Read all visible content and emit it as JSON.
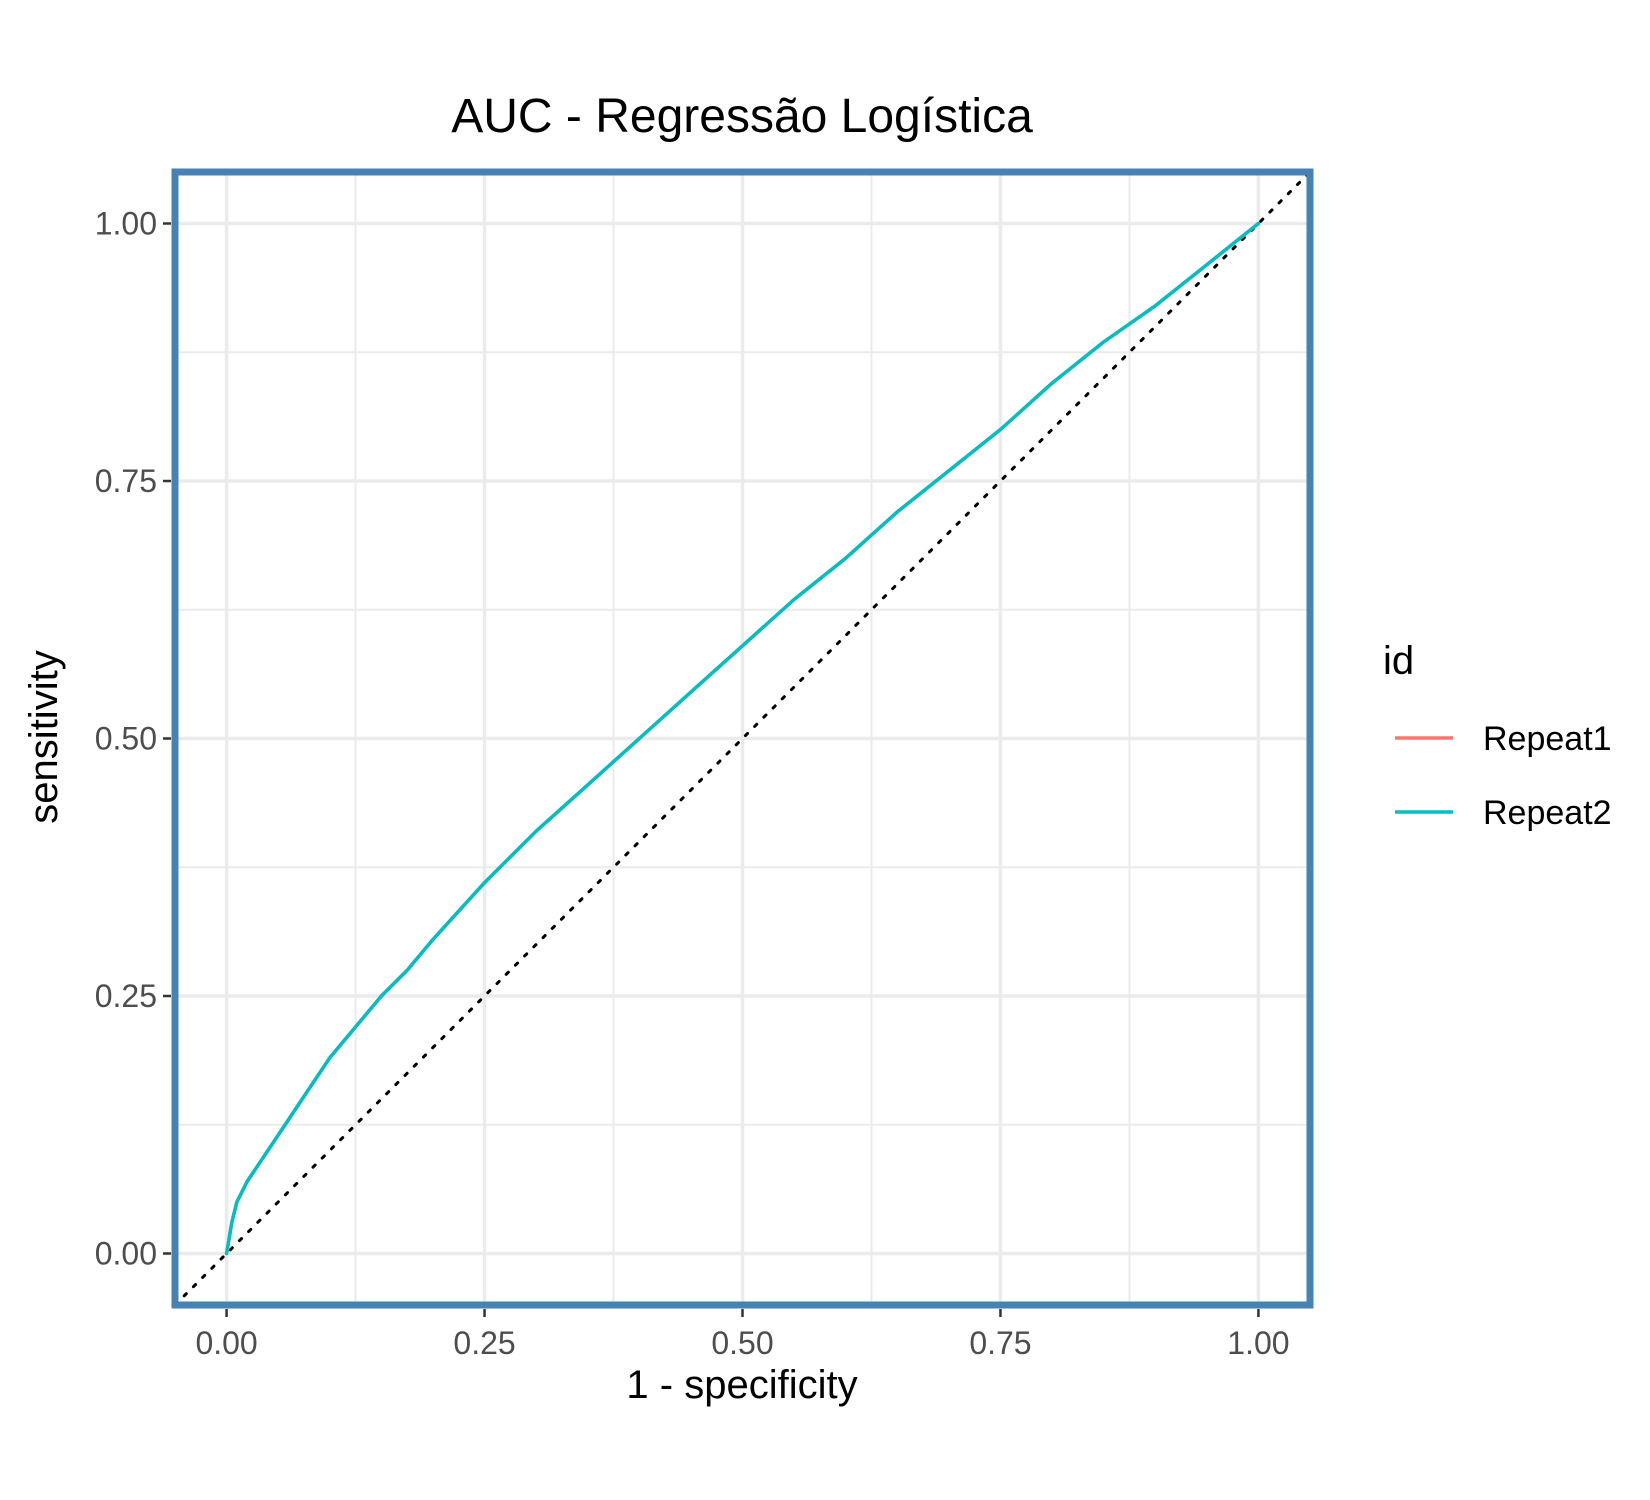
{
  "chart_data": {
    "type": "line",
    "title": "AUC - Regressão Logística",
    "xlabel": "1 - specificity",
    "ylabel": "sensitivity",
    "xlim": [
      -0.05,
      1.05
    ],
    "ylim": [
      -0.05,
      1.05
    ],
    "x_ticks": [
      0,
      0.25,
      0.5,
      0.75,
      1
    ],
    "x_tick_labels": [
      "0.00",
      "0.25",
      "0.50",
      "0.75",
      "1.00"
    ],
    "y_ticks": [
      0,
      0.25,
      0.5,
      0.75,
      1
    ],
    "y_tick_labels": [
      "0.00",
      "0.25",
      "0.50",
      "0.75",
      "1.00"
    ],
    "grid": true,
    "legend": {
      "title": "id",
      "position": "right"
    },
    "reference_line": {
      "style": "dotted",
      "color": "#000000",
      "from": [
        -0.05,
        -0.05
      ],
      "to": [
        1.05,
        1.05
      ]
    },
    "panel_border_color": "#4682B4",
    "series": [
      {
        "name": "Repeat1",
        "color": "#F8766D",
        "x": [
          0,
          0.005,
          0.01,
          0.02,
          0.04,
          0.06,
          0.08,
          0.1,
          0.125,
          0.15,
          0.175,
          0.2,
          0.25,
          0.3,
          0.35,
          0.4,
          0.45,
          0.5,
          0.55,
          0.6,
          0.65,
          0.7,
          0.75,
          0.8,
          0.85,
          0.9,
          0.95,
          1
        ],
        "y": [
          0,
          0.03,
          0.05,
          0.07,
          0.1,
          0.13,
          0.16,
          0.19,
          0.22,
          0.25,
          0.275,
          0.305,
          0.36,
          0.41,
          0.455,
          0.5,
          0.545,
          0.59,
          0.635,
          0.675,
          0.72,
          0.76,
          0.8,
          0.845,
          0.885,
          0.92,
          0.96,
          1
        ]
      },
      {
        "name": "Repeat2",
        "color": "#00BFC4",
        "x": [
          0,
          0.005,
          0.01,
          0.02,
          0.04,
          0.06,
          0.08,
          0.1,
          0.125,
          0.15,
          0.175,
          0.2,
          0.25,
          0.3,
          0.35,
          0.4,
          0.45,
          0.5,
          0.55,
          0.6,
          0.65,
          0.7,
          0.75,
          0.8,
          0.85,
          0.9,
          0.95,
          1
        ],
        "y": [
          0,
          0.03,
          0.05,
          0.07,
          0.1,
          0.13,
          0.16,
          0.19,
          0.22,
          0.25,
          0.275,
          0.305,
          0.36,
          0.41,
          0.455,
          0.5,
          0.545,
          0.59,
          0.635,
          0.675,
          0.72,
          0.76,
          0.8,
          0.845,
          0.885,
          0.92,
          0.96,
          1
        ]
      }
    ]
  }
}
